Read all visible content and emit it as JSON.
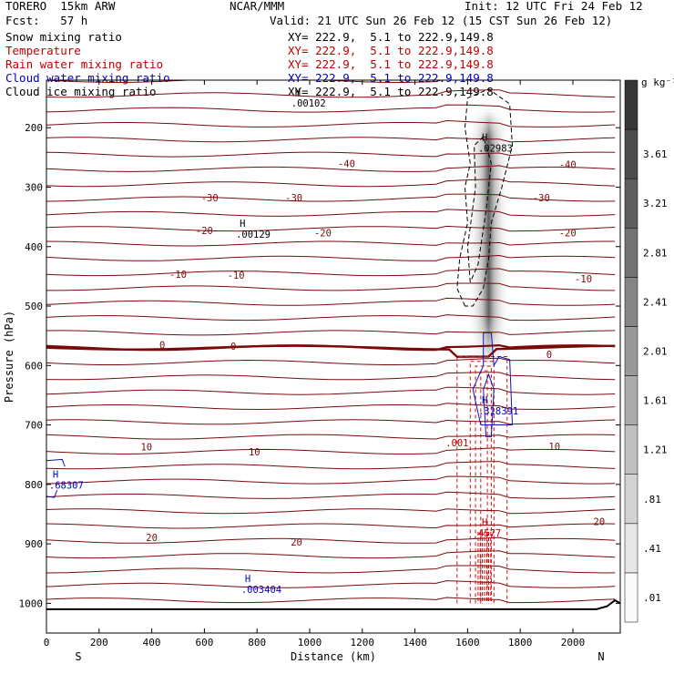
{
  "header": {
    "model": "TORERO  15km ARW",
    "center": "NCAR/MMM",
    "init": "Init: 12 UTC Fri 24 Feb 12",
    "fcst": "Fcst:   57 h",
    "valid": "Valid: 21 UTC Sun 26 Feb 12 (15 CST Sun 26 Feb 12)"
  },
  "legend": [
    {
      "name": "Snow mixing ratio",
      "xy": "XY= 222.9,  5.1 to 222.9,149.8",
      "color": "#000000"
    },
    {
      "name": "Temperature",
      "xy": "XY= 222.9,  5.1 to 222.9,149.8",
      "color": "#c00000"
    },
    {
      "name": "Rain water mixing ratio",
      "xy": "XY= 222.9,  5.1 to 222.9,149.8",
      "color": "#c00000"
    },
    {
      "name": "Cloud water mixing ratio",
      "xy": "XY= 222.9,  5.1 to 222.9,149.8",
      "color": "#0000c0"
    },
    {
      "name": "Cloud ice mixing ratio",
      "xy": "XY= 222.9,  5.1 to 222.9,149.8",
      "color": "#000000"
    }
  ],
  "chart_data": {
    "type": "cross-section",
    "xlabel": "Distance (km)",
    "ylabel": "Pressure (hPa)",
    "xlim": [
      0,
      2180
    ],
    "ylim": [
      1050,
      120
    ],
    "xticks": [
      0,
      200,
      400,
      600,
      800,
      1000,
      1200,
      1400,
      1600,
      1800,
      2000
    ],
    "yticks": [
      200,
      300,
      400,
      500,
      600,
      700,
      800,
      900,
      1000
    ],
    "left_end": "S",
    "right_end": "N",
    "colorbar": {
      "unit": "g kg⁻¹",
      "labels": [
        ".01",
        ".41",
        ".81",
        "1.21",
        "1.61",
        "2.01",
        "2.41",
        "2.81",
        "3.21",
        "3.61"
      ]
    },
    "temperature_labels": [
      {
        "text": "-40",
        "x": 1140,
        "p": 260
      },
      {
        "text": "-40",
        "x": 1980,
        "p": 262
      },
      {
        "text": "-30",
        "x": 620,
        "p": 318
      },
      {
        "text": "-30",
        "x": 940,
        "p": 318
      },
      {
        "text": "-30",
        "x": 1880,
        "p": 318
      },
      {
        "text": "-20",
        "x": 600,
        "p": 373
      },
      {
        "text": "-20",
        "x": 1050,
        "p": 377
      },
      {
        "text": "-20",
        "x": 1980,
        "p": 377
      },
      {
        "text": "-10",
        "x": 500,
        "p": 446
      },
      {
        "text": "-10",
        "x": 720,
        "p": 448
      },
      {
        "text": "-10",
        "x": 2040,
        "p": 454
      },
      {
        "text": "0",
        "x": 440,
        "p": 565
      },
      {
        "text": "0",
        "x": 710,
        "p": 567
      },
      {
        "text": "0",
        "x": 1910,
        "p": 581
      },
      {
        "text": "10",
        "x": 380,
        "p": 737
      },
      {
        "text": "10",
        "x": 790,
        "p": 745
      },
      {
        "text": "10",
        "x": 1930,
        "p": 736
      },
      {
        "text": "20",
        "x": 400,
        "p": 889
      },
      {
        "text": "20",
        "x": 950,
        "p": 897
      },
      {
        "text": "20",
        "x": 2100,
        "p": 862
      }
    ],
    "maxima_labels": [
      {
        "text": "H",
        "value": ".00102",
        "x": 930,
        "p": 152,
        "color": "#000000"
      },
      {
        "text": "H",
        "value": ".00129",
        "x": 720,
        "p": 373,
        "color": "#000000"
      },
      {
        "text": "H",
        "value": ".02983",
        "x": 1640,
        "p": 228,
        "color": "#000000"
      },
      {
        "text": "H",
        "value": ".318391",
        "x": 1640,
        "p": 670,
        "color": "#0000c0"
      },
      {
        "text": "H",
        "value": ".68307",
        "x": 10,
        "p": 795,
        "color": "#0000c0"
      },
      {
        "text": "H",
        "value": ".003404",
        "x": 740,
        "p": 970,
        "color": "#0000c0"
      },
      {
        "text": "H",
        "value": "4577",
        "x": 1640,
        "p": 875,
        "color": "#c00000"
      }
    ],
    "rain_label": {
      "text": ".001",
      "x": 1560,
      "p": 730
    }
  }
}
